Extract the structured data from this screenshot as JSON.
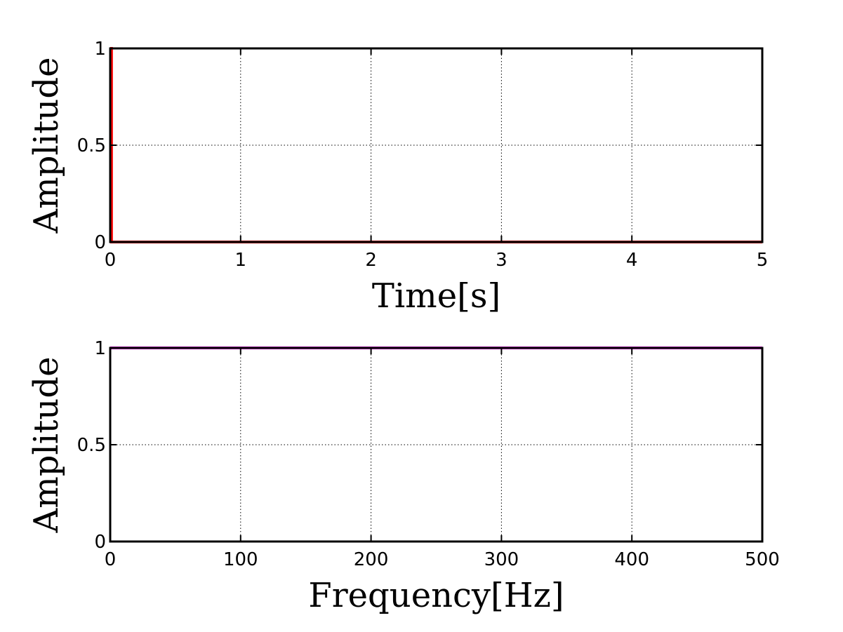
{
  "chart_data": [
    {
      "type": "line",
      "xlabel": "Time[s]",
      "ylabel": "Amplitude",
      "xlim": [
        0,
        5
      ],
      "ylim": [
        0,
        1
      ],
      "xticks": [
        0,
        1,
        2,
        3,
        4,
        5
      ],
      "xtick_labels": [
        "0",
        "1",
        "2",
        "3",
        "4",
        "5"
      ],
      "yticks": [
        0,
        0.5,
        1
      ],
      "ytick_labels": [
        "0",
        "0.5",
        "1"
      ],
      "grid": true,
      "series": [
        {
          "color": "#ff0000",
          "x": [
            0,
            0.01,
            0.01,
            5
          ],
          "y": [
            1,
            1,
            0,
            0
          ]
        }
      ]
    },
    {
      "type": "line",
      "xlabel": "Frequency[Hz]",
      "ylabel": "Amplitude",
      "xlim": [
        0,
        500
      ],
      "ylim": [
        0,
        1
      ],
      "xticks": [
        0,
        100,
        200,
        300,
        400,
        500
      ],
      "xtick_labels": [
        "0",
        "100",
        "200",
        "300",
        "400",
        "500"
      ],
      "yticks": [
        0,
        0.5,
        1
      ],
      "ytick_labels": [
        "0",
        "0.5",
        "1"
      ],
      "grid": true,
      "series": [
        {
          "color": "#ff00ff",
          "x": [
            0,
            500
          ],
          "y": [
            1,
            1
          ]
        }
      ]
    }
  ]
}
